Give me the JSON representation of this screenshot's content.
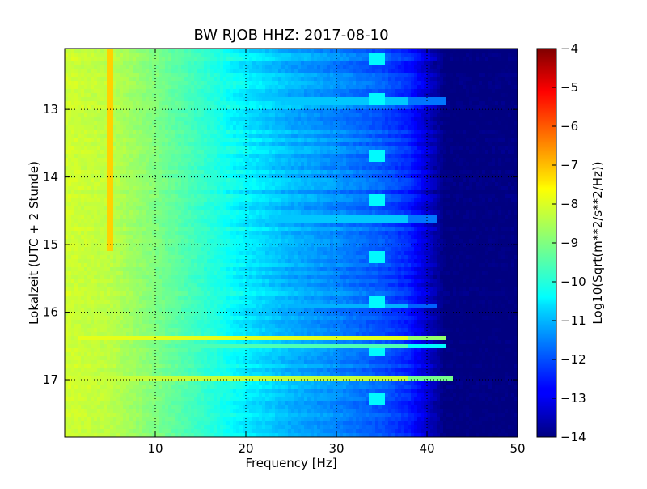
{
  "chart_data": {
    "type": "heatmap",
    "title": "BW RJOB HHZ: 2017-08-10",
    "xlabel": "Frequency [Hz]",
    "ylabel": "Lokalzeit (UTC + 2 Stunde)",
    "xlim": [
      0,
      50
    ],
    "ylim": [
      12.1,
      17.85
    ],
    "y_inverted": true,
    "x_ticks": [
      10,
      20,
      30,
      40,
      50
    ],
    "y_ticks": [
      13,
      14,
      15,
      16,
      17
    ],
    "grid": true,
    "colormap": "jet",
    "colorbar": {
      "label": "Log10(Sqrt(m**2/s**2/Hz))",
      "range": [
        -14,
        -4
      ],
      "ticks": [
        -4,
        -5,
        -6,
        -7,
        -8,
        -9,
        -10,
        -11,
        -12,
        -13,
        -14
      ]
    },
    "spectrum_profile": [
      {
        "freq": 0,
        "value": -8.2
      },
      {
        "freq": 5,
        "value": -8.4
      },
      {
        "freq": 10,
        "value": -9.0
      },
      {
        "freq": 15,
        "value": -9.7
      },
      {
        "freq": 20,
        "value": -10.4
      },
      {
        "freq": 25,
        "value": -11.0
      },
      {
        "freq": 30,
        "value": -11.4
      },
      {
        "freq": 35,
        "value": -11.9
      },
      {
        "freq": 38,
        "value": -12.4
      },
      {
        "freq": 40,
        "value": -13.2
      },
      {
        "freq": 42,
        "value": -14.0
      },
      {
        "freq": 50,
        "value": -14.0
      }
    ],
    "features": [
      {
        "kind": "vertical_line",
        "freq": 5.0,
        "time_start": 12.1,
        "time_end": 15.1,
        "value": -7.3
      },
      {
        "kind": "horizontal_band",
        "time": 16.38,
        "freq_start": 1.3,
        "freq_end": 42,
        "value": -8.0
      },
      {
        "kind": "horizontal_band",
        "time": 16.98,
        "freq_start": 0,
        "freq_end": 43,
        "value": -8.3
      },
      {
        "kind": "horizontal_band",
        "time": 16.52,
        "freq_start": 0,
        "freq_end": 42,
        "value": -9.5
      },
      {
        "kind": "horizontal_band",
        "time": 12.88,
        "freq_start": 20,
        "freq_end": 42,
        "value": -10.8
      },
      {
        "kind": "horizontal_band",
        "time": 14.62,
        "freq_start": 20,
        "freq_end": 41,
        "value": -10.8
      },
      {
        "kind": "horizontal_band",
        "time": 15.92,
        "freq_start": 20,
        "freq_end": 41,
        "value": -11.0
      },
      {
        "kind": "periodic_arc",
        "freq_center": 34.5,
        "times": [
          12.3,
          12.9,
          13.7,
          14.4,
          15.2,
          15.9,
          16.6,
          17.3
        ],
        "value": -10.3
      }
    ]
  }
}
